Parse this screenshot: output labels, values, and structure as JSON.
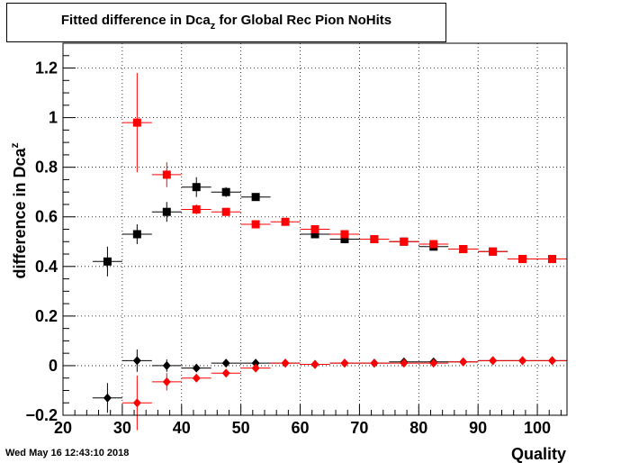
{
  "timestamp": "Wed May 16 12:43:10 2018",
  "colors": {
    "series_black": "#000000",
    "series_red": "#ff0000",
    "frame": "#000000",
    "grid": "#000000"
  },
  "chart_data": {
    "type": "scatter",
    "title": {
      "main": "Fitted difference in Dca",
      "subscript": "z",
      "rest": " for Global Rec Pion NoHits"
    },
    "xlabel": "Quality",
    "ylabel": {
      "main": "difference in Dca",
      "subscript": "z"
    },
    "xlim": [
      20,
      105
    ],
    "ylim": [
      -0.2,
      1.3
    ],
    "x_ticks": [
      20,
      30,
      40,
      50,
      60,
      70,
      80,
      90,
      100
    ],
    "y_ticks": [
      -0.2,
      0,
      0.2,
      0.4,
      0.6,
      0.8,
      1,
      1.2
    ],
    "y_tick_labels": [
      "−0.2",
      "0",
      "0.2",
      "0.4",
      "0.6",
      "0.8",
      "1",
      "1.2"
    ],
    "grid": true,
    "x_error": 2.5,
    "series": [
      {
        "color": "#000000",
        "marker": "square",
        "x": [
          27.5,
          32.5,
          37.5,
          42.5,
          47.5,
          52.5,
          62.5,
          67.5,
          72.5,
          77.5,
          82.5,
          87.5,
          92.5,
          97.5,
          102.5
        ],
        "y": [
          0.42,
          0.53,
          0.62,
          0.72,
          0.7,
          0.68,
          0.53,
          0.51,
          0.51,
          0.5,
          0.48,
          0.47,
          0.46,
          0.43,
          0.43
        ],
        "yerr": [
          0.06,
          0.04,
          0.04,
          0.04,
          0.02,
          0.015,
          0.01,
          0.01,
          0.01,
          0.01,
          0.01,
          0.01,
          0.01,
          0.01,
          0.01
        ]
      },
      {
        "color": "#ff0000",
        "marker": "square",
        "x": [
          32.5,
          37.5,
          42.5,
          47.5,
          52.5,
          57.5,
          62.5,
          67.5,
          72.5,
          77.5,
          82.5,
          87.5,
          92.5,
          97.5,
          102.5
        ],
        "y": [
          0.98,
          0.77,
          0.63,
          0.62,
          0.57,
          0.58,
          0.55,
          0.53,
          0.51,
          0.5,
          0.49,
          0.47,
          0.46,
          0.43,
          0.43
        ],
        "yerr": [
          0.2,
          0.05,
          0.02,
          0.015,
          0.01,
          0.01,
          0.01,
          0.01,
          0.01,
          0.01,
          0.01,
          0.01,
          0.01,
          0.01,
          0.01
        ]
      },
      {
        "color": "#000000",
        "marker": "diamond",
        "x": [
          27.5,
          32.5,
          37.5,
          42.5,
          47.5,
          52.5,
          57.5,
          62.5,
          67.5,
          72.5,
          77.5,
          82.5,
          87.5,
          92.5,
          97.5,
          102.5
        ],
        "y": [
          -0.13,
          0.02,
          0.0,
          -0.01,
          0.01,
          0.01,
          0.01,
          0.005,
          0.01,
          0.01,
          0.015,
          0.015,
          0.015,
          0.02,
          0.02,
          0.02
        ],
        "yerr": [
          0.06,
          0.045,
          0.025,
          0.01,
          0.008,
          0.005,
          0.005,
          0.005,
          0.005,
          0.005,
          0.005,
          0.005,
          0.005,
          0.005,
          0.005,
          0.005
        ]
      },
      {
        "color": "#ff0000",
        "marker": "diamond",
        "x": [
          32.5,
          37.5,
          42.5,
          47.5,
          52.5,
          57.5,
          62.5,
          67.5,
          72.5,
          77.5,
          82.5,
          87.5,
          92.5,
          97.5,
          102.5
        ],
        "y": [
          -0.15,
          -0.065,
          -0.05,
          -0.03,
          -0.01,
          0.01,
          0.005,
          0.01,
          0.01,
          0.01,
          0.01,
          0.015,
          0.02,
          0.02,
          0.02
        ],
        "yerr": [
          0.11,
          0.035,
          0.01,
          0.008,
          0.005,
          0.005,
          0.005,
          0.005,
          0.005,
          0.005,
          0.005,
          0.005,
          0.005,
          0.005,
          0.005
        ]
      }
    ]
  }
}
